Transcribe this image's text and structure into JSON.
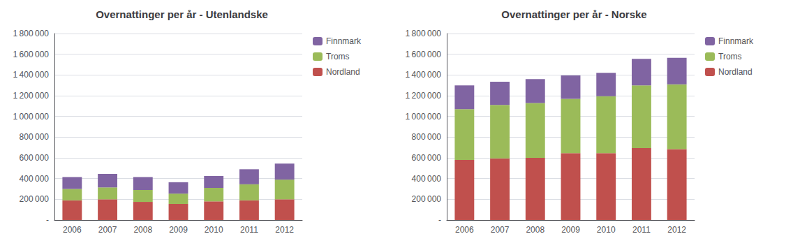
{
  "chart_data": [
    {
      "type": "bar",
      "title": "Overnattinger per år - Utenlandske",
      "categories": [
        "2006",
        "2007",
        "2008",
        "2009",
        "2010",
        "2011",
        "2012"
      ],
      "series": [
        {
          "name": "Nordland",
          "color": "#C0504D",
          "values": [
            190000,
            200000,
            175000,
            155000,
            180000,
            190000,
            200000
          ]
        },
        {
          "name": "Troms",
          "color": "#9BBB59",
          "values": [
            110000,
            115000,
            115000,
            100000,
            130000,
            155000,
            190000
          ]
        },
        {
          "name": "Finnmark",
          "color": "#8064A2",
          "values": [
            115000,
            130000,
            125000,
            110000,
            115000,
            145000,
            155000
          ]
        }
      ],
      "stacked": true,
      "ylim": [
        0,
        1800000
      ],
      "yticks": [
        {
          "value": 0,
          "label": "-"
        },
        {
          "value": 200000,
          "label": "200 000"
        },
        {
          "value": 400000,
          "label": "400 000"
        },
        {
          "value": 600000,
          "label": "600 000"
        },
        {
          "value": 800000,
          "label": "800 000"
        },
        {
          "value": 1000000,
          "label": "1 000 000"
        },
        {
          "value": 1200000,
          "label": "1 200 000"
        },
        {
          "value": 1400000,
          "label": "1 400 000"
        },
        {
          "value": 1600000,
          "label": "1 600 000"
        },
        {
          "value": 1800000,
          "label": "1 800 000"
        }
      ],
      "grid": true,
      "legend": "upper right"
    },
    {
      "type": "bar",
      "title": "Overnattinger per år - Norske",
      "categories": [
        "2006",
        "2007",
        "2008",
        "2009",
        "2010",
        "2011",
        "2012"
      ],
      "series": [
        {
          "name": "Nordland",
          "color": "#C0504D",
          "values": [
            580000,
            595000,
            600000,
            645000,
            645000,
            695000,
            685000
          ]
        },
        {
          "name": "Troms",
          "color": "#9BBB59",
          "values": [
            490000,
            515000,
            530000,
            525000,
            550000,
            605000,
            625000
          ]
        },
        {
          "name": "Finnmark",
          "color": "#8064A2",
          "values": [
            230000,
            225000,
            230000,
            225000,
            225000,
            255000,
            255000
          ]
        }
      ],
      "stacked": true,
      "ylim": [
        0,
        1800000
      ],
      "yticks": [
        {
          "value": 0,
          "label": "-"
        },
        {
          "value": 200000,
          "label": "200 000"
        },
        {
          "value": 400000,
          "label": "400 000"
        },
        {
          "value": 600000,
          "label": "600 000"
        },
        {
          "value": 800000,
          "label": "800 000"
        },
        {
          "value": 1000000,
          "label": "1 000 000"
        },
        {
          "value": 1200000,
          "label": "1 200 000"
        },
        {
          "value": 1400000,
          "label": "1 400 000"
        },
        {
          "value": 1600000,
          "label": "1 600 000"
        },
        {
          "value": 1800000,
          "label": "1 800 000"
        }
      ],
      "grid": true,
      "legend": "upper right"
    }
  ]
}
